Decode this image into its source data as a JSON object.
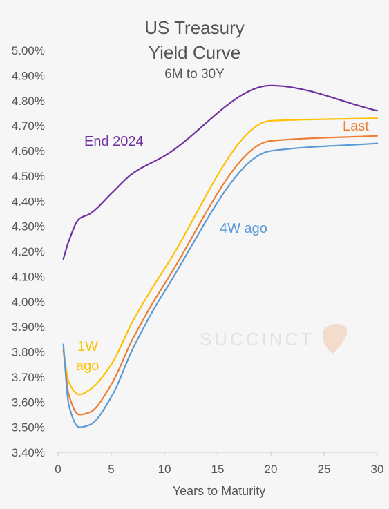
{
  "chart_data": {
    "type": "line",
    "title": "US Treasury",
    "title_line2": "Yield Curve",
    "subtitle": "6M to 30Y",
    "xlabel": "Years to Maturity",
    "ylabel": "",
    "xlim": [
      0,
      30
    ],
    "ylim": [
      3.4,
      5.0
    ],
    "xticks": [
      0,
      5,
      10,
      15,
      20,
      25,
      30
    ],
    "xtick_labels": [
      "0",
      "5",
      "10",
      "15",
      "20",
      "25",
      "30"
    ],
    "yticks": [
      3.4,
      3.5,
      3.6,
      3.7,
      3.8,
      3.9,
      4.0,
      4.1,
      4.2,
      4.3,
      4.4,
      4.5,
      4.6,
      4.7,
      4.8,
      4.9,
      5.0
    ],
    "ytick_labels": [
      "3.40%",
      "3.50%",
      "3.60%",
      "3.70%",
      "3.80%",
      "3.90%",
      "4.00%",
      "4.10%",
      "4.20%",
      "4.30%",
      "4.40%",
      "4.50%",
      "4.60%",
      "4.70%",
      "4.80%",
      "4.90%",
      "5.00%"
    ],
    "grid": false,
    "legend": "inline labels",
    "watermark": "SUCCINCT",
    "series": [
      {
        "name": "End 2024",
        "color": "#7030a0",
        "x": [
          0.5,
          1,
          2,
          3,
          5,
          7,
          10,
          20,
          30
        ],
        "y": [
          4.17,
          4.24,
          4.33,
          4.35,
          4.43,
          4.51,
          4.58,
          4.86,
          4.76
        ]
      },
      {
        "name": "1W ago",
        "color": "#ffc000",
        "x": [
          0.5,
          1,
          2,
          3,
          5,
          7,
          10,
          20,
          30
        ],
        "y": [
          3.81,
          3.68,
          3.63,
          3.65,
          3.75,
          3.92,
          4.13,
          4.72,
          4.73
        ]
      },
      {
        "name": "Last",
        "color": "#ed7d31",
        "x": [
          0.5,
          1,
          2,
          3,
          5,
          7,
          10,
          20,
          30
        ],
        "y": [
          3.81,
          3.63,
          3.55,
          3.56,
          3.67,
          3.85,
          4.07,
          4.64,
          4.66
        ]
      },
      {
        "name": "4W ago",
        "color": "#5b9bd5",
        "x": [
          0.5,
          1,
          2,
          3,
          5,
          7,
          10,
          20,
          30
        ],
        "y": [
          3.83,
          3.59,
          3.5,
          3.51,
          3.62,
          3.81,
          4.04,
          4.6,
          4.63
        ]
      }
    ],
    "series_labels": {
      "end2024": "End 2024",
      "last": "Last",
      "w4": "4W ago",
      "w1_line1": "1W",
      "w1_line2": "ago"
    }
  }
}
